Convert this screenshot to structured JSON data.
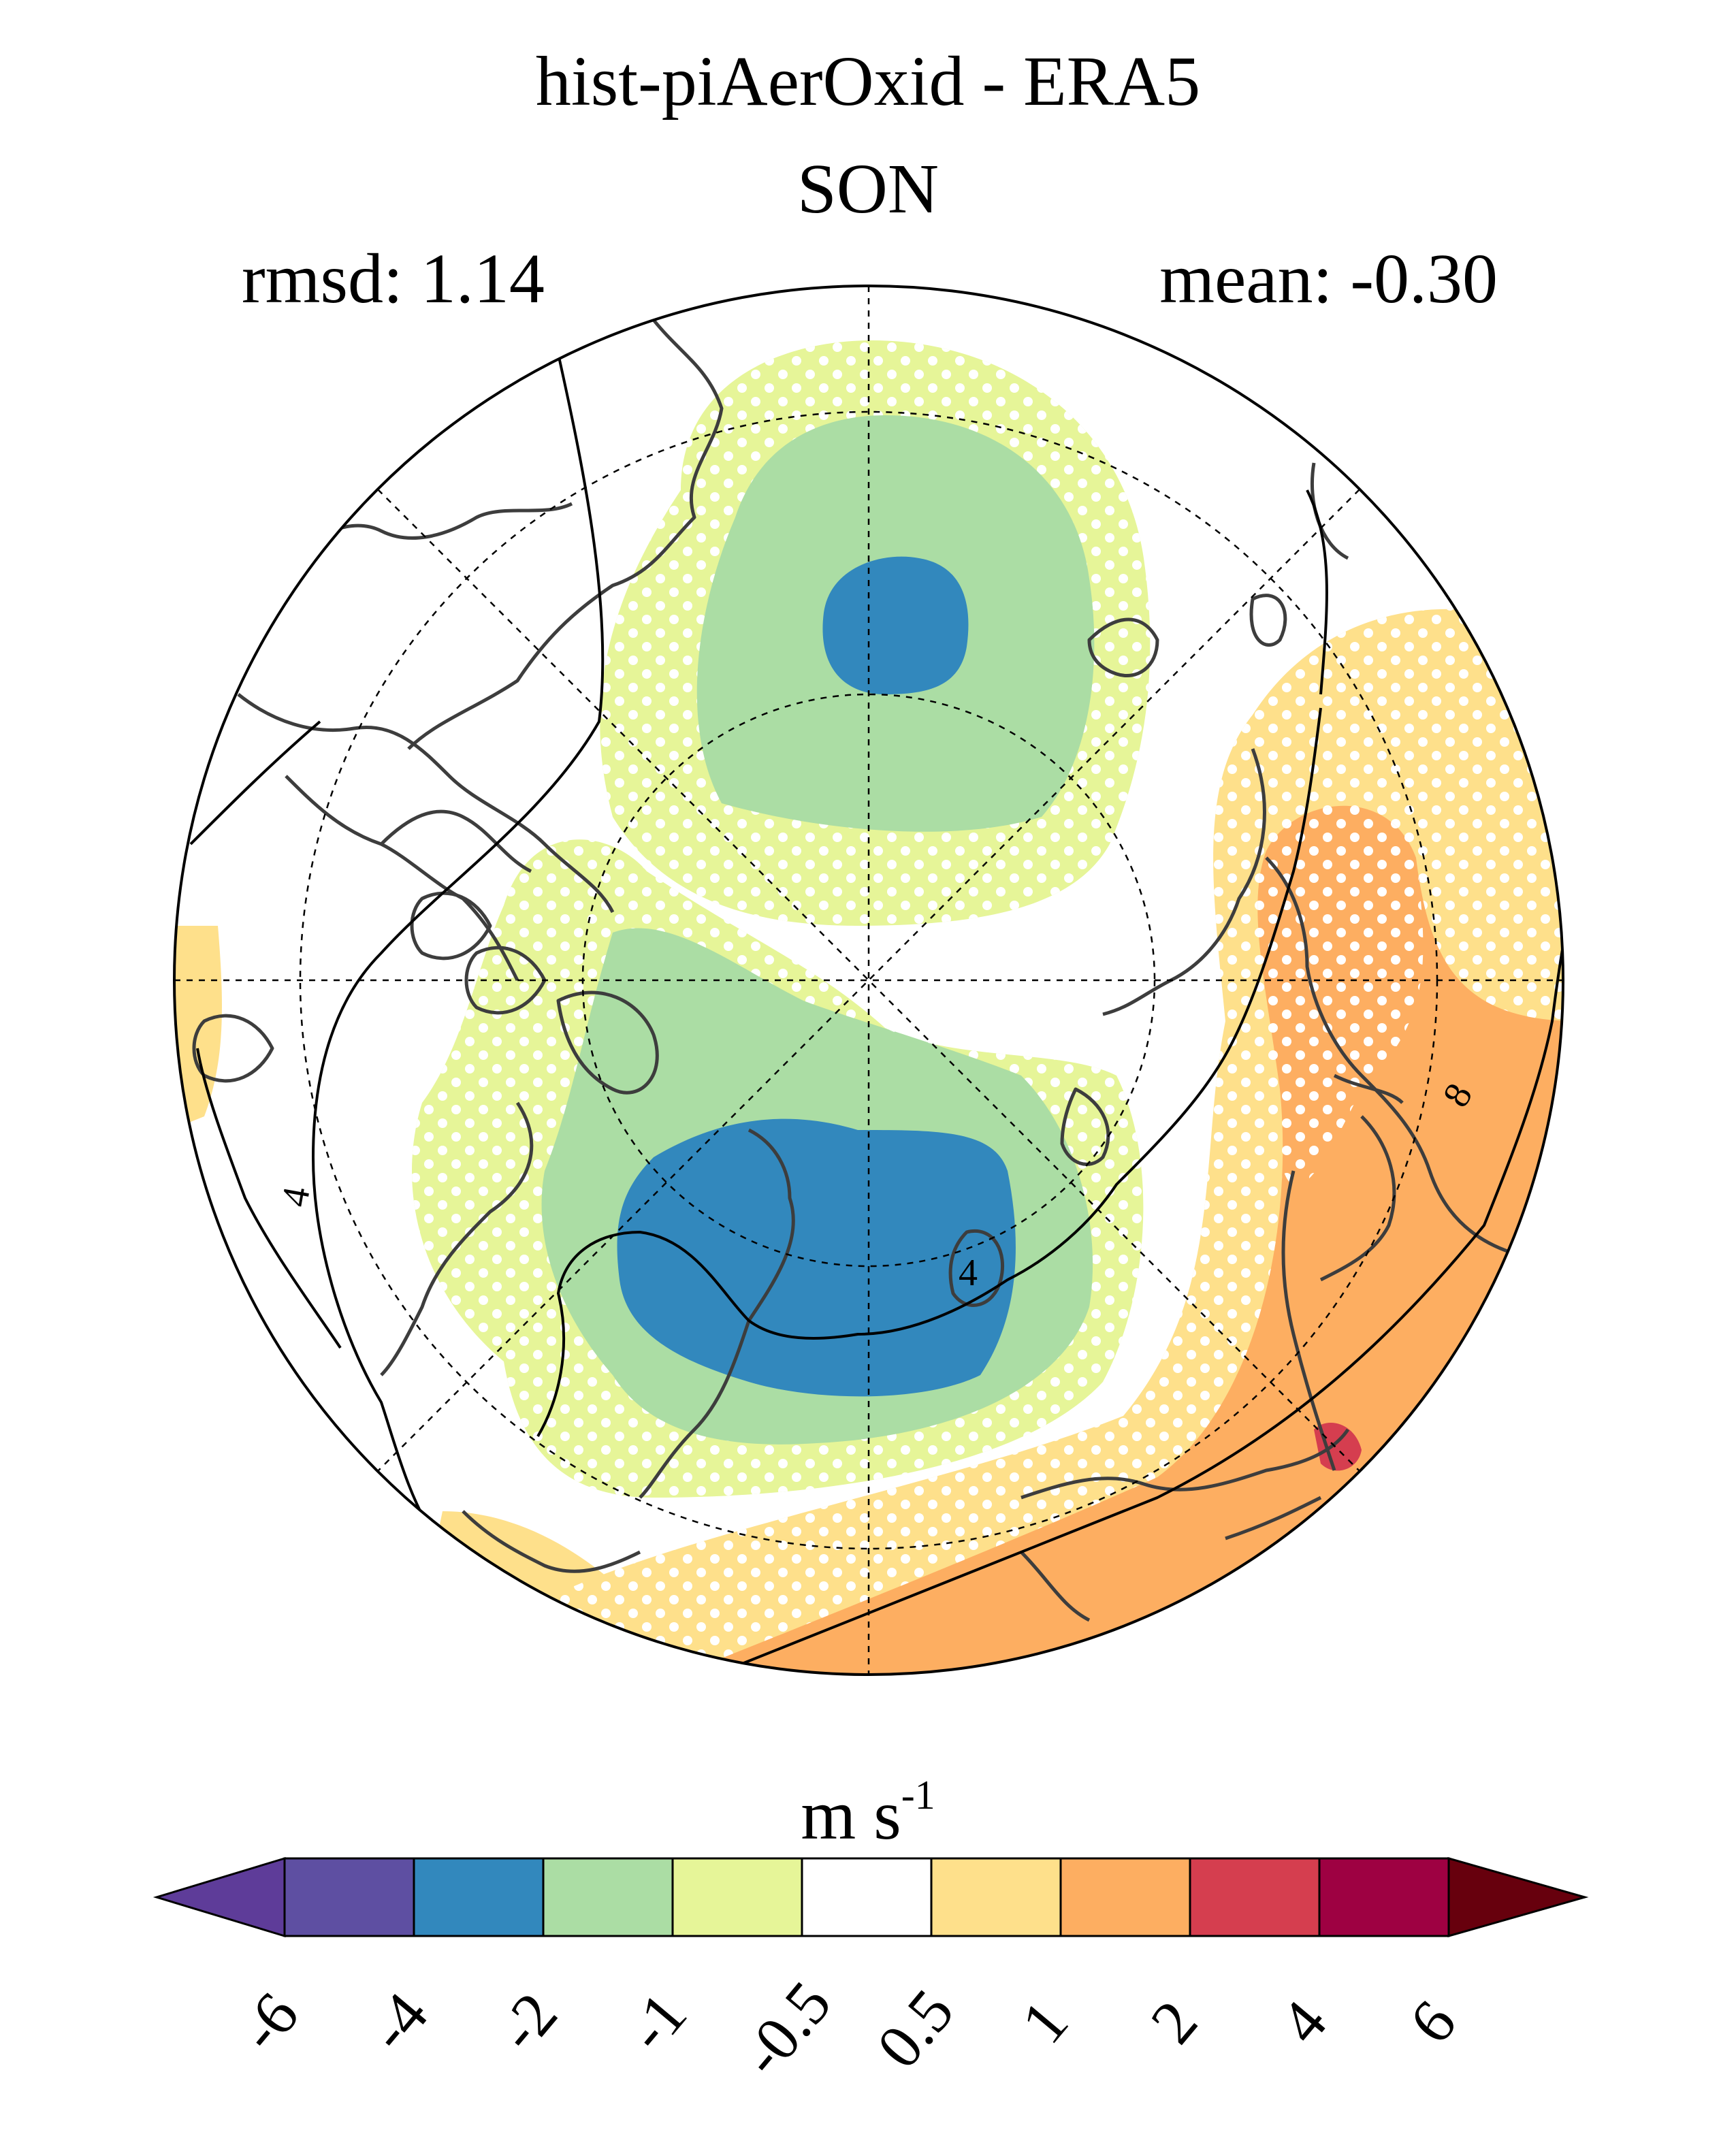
{
  "title": "hist-piAerOxid - ERA5",
  "season": "SON",
  "stats": {
    "rmsd": "rmsd: 1.14",
    "mean": "mean: -0.30"
  },
  "contour_labels": [
    "4",
    "4",
    "8"
  ],
  "colorbar": {
    "unit": "m s",
    "unit_exp": "-1",
    "tick_labels": [
      "-6",
      "-4",
      "-2",
      "-1",
      "-0.5",
      "0.5",
      "1",
      "2",
      "4",
      "6"
    ],
    "colors": [
      "#5e3c99",
      "#5e4fa2",
      "#3288bd",
      "#abdda4",
      "#e6f598",
      "#ffffff",
      "#fee08b",
      "#fdae61",
      "#d53e4f",
      "#9e0142",
      "#67000d"
    ],
    "under_color": "#5e3c99",
    "over_color": "#67000d"
  }
}
